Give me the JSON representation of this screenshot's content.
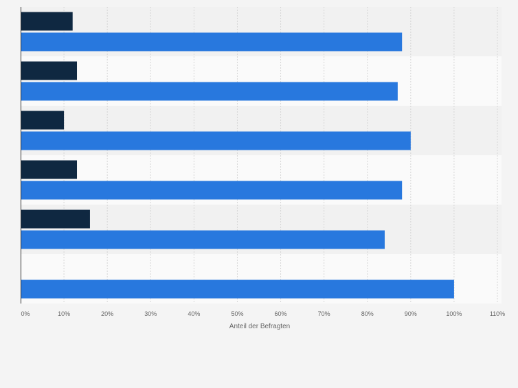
{
  "chart_data": {
    "type": "bar",
    "orientation": "horizontal",
    "categories": [
      "",
      "",
      "",
      "",
      "",
      ""
    ],
    "series": [
      {
        "values": [
          12,
          13,
          10,
          13,
          16,
          null
        ],
        "color": "#0f2841"
      },
      {
        "values": [
          88,
          87,
          90,
          88,
          84,
          100
        ],
        "color": "#2878de"
      }
    ],
    "xlim": [
      0,
      110
    ],
    "xticks": [
      0,
      10,
      20,
      30,
      40,
      50,
      60,
      70,
      80,
      90,
      100,
      110
    ],
    "xtick_labels": [
      "0%",
      "10%",
      "20%",
      "30%",
      "40%",
      "50%",
      "60%",
      "70%",
      "80%",
      "90%",
      "100%",
      "110%"
    ],
    "xlabel": "Anteil der Befragten",
    "ylabel": "",
    "title": "",
    "grid": true,
    "legend": "none"
  },
  "colors": {
    "band_dark": "#f1f1f1",
    "band_light": "#fafafa",
    "grid": "#d6d6d6",
    "axis": "#333333",
    "tick_text": "#666666"
  }
}
